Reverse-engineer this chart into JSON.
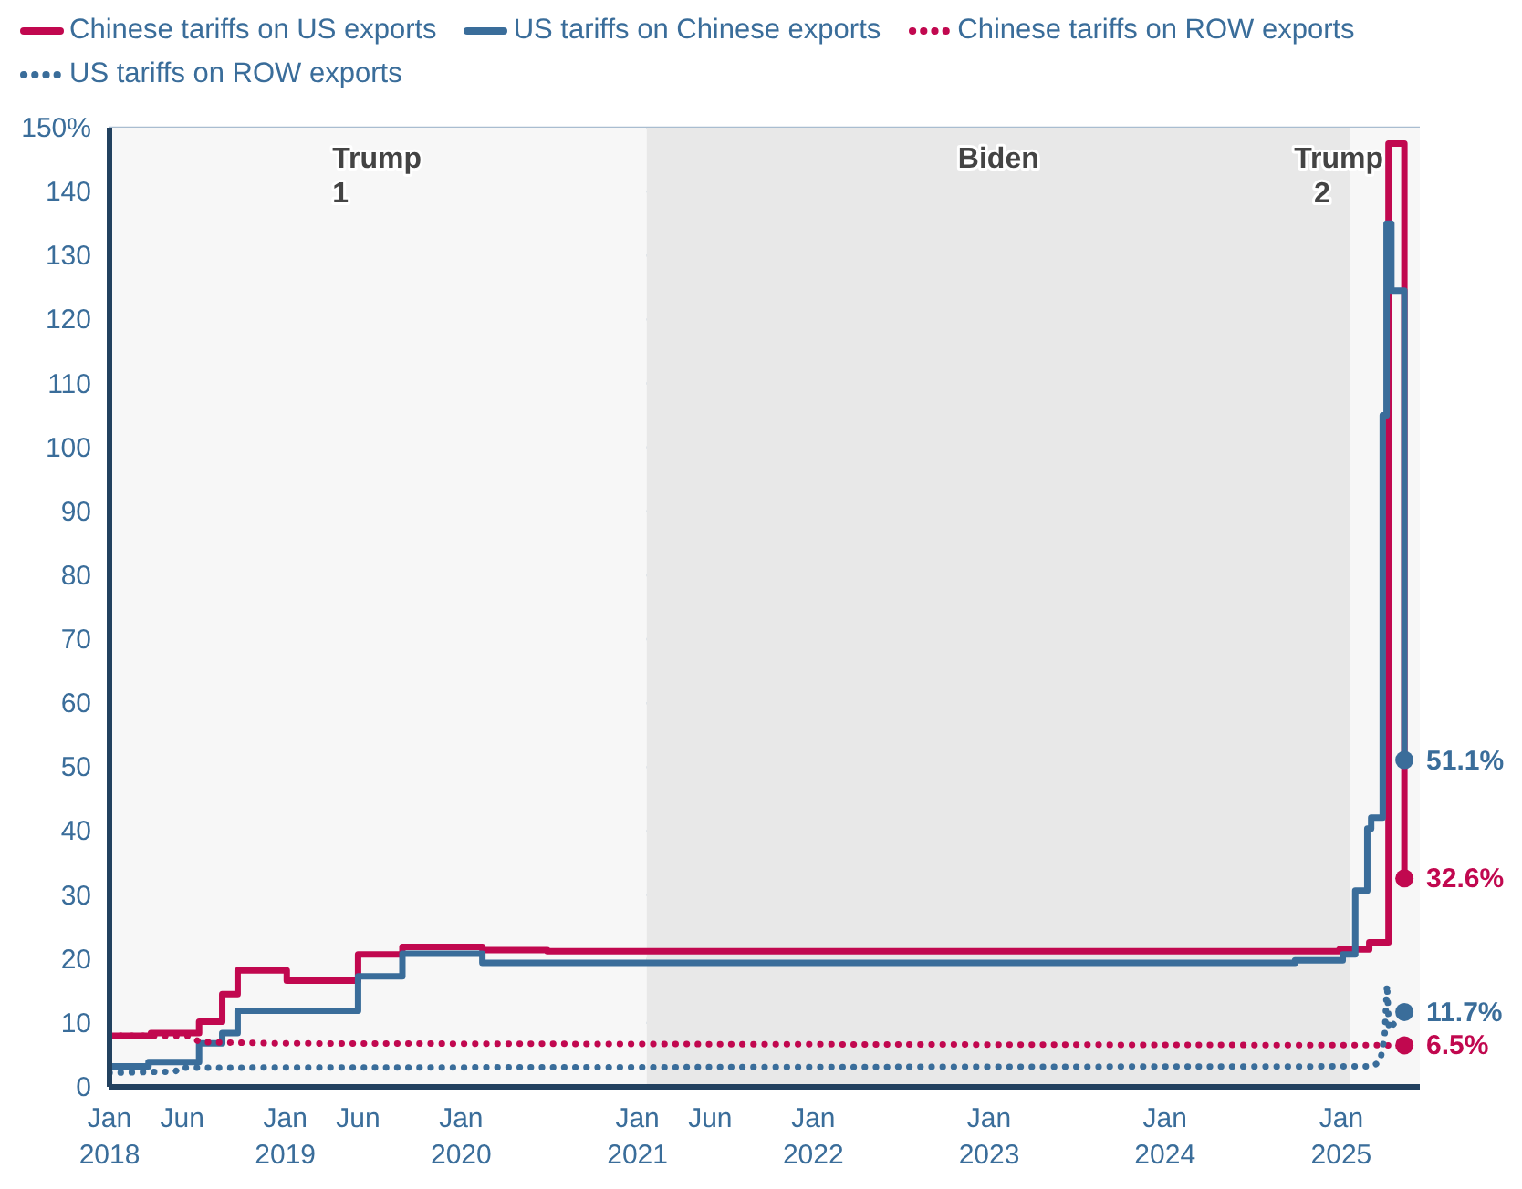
{
  "chart_data": {
    "type": "step",
    "xlim": [
      "2018-01-01",
      "2025-06-13"
    ],
    "ylim": [
      0,
      150
    ],
    "xticks": [
      {
        "value": "2018-01",
        "label": "Jan 2018"
      },
      {
        "value": "2018-06",
        "label": "Jun"
      },
      {
        "value": "2019-01",
        "label": "Jan 2019"
      },
      {
        "value": "2019-06",
        "label": "Jun"
      },
      {
        "value": "2020-01",
        "label": "Jan 2020"
      },
      {
        "value": "2021-01",
        "label": "Jan 2021"
      },
      {
        "value": "2021-06",
        "label": "Jun"
      },
      {
        "value": "2022-01",
        "label": "Jan 2022"
      },
      {
        "value": "2023-01",
        "label": "Jan 2023"
      },
      {
        "value": "2024-01",
        "label": "Jan 2024"
      },
      {
        "value": "2025-01",
        "label": "Jan 2025"
      }
    ],
    "yticks": [
      0,
      10,
      20,
      30,
      40,
      50,
      60,
      70,
      80,
      90,
      100,
      110,
      120,
      130,
      140,
      {
        "value": 150,
        "label": "150%"
      }
    ],
    "grid": "y",
    "legend": "top",
    "bands": [
      {
        "axis": "x",
        "from": "2018-01-01",
        "to": "2021-01-20",
        "label": "Trump 1",
        "color": "#f7f7f7"
      },
      {
        "axis": "x",
        "from": "2021-01-20",
        "to": "2025-01-20",
        "label": "Biden",
        "color": "#e8e8e8"
      },
      {
        "axis": "x",
        "from": "2025-01-20",
        "to": "2025-06-13",
        "label": "Trump 2",
        "color": "#f7f7f7"
      }
    ],
    "series": [
      {
        "name": "Chinese tariffs on US exports",
        "color": "#c1084f",
        "line_style": "solid",
        "x": [
          "2018-01-01",
          "2018-03-28",
          "2018-07-06",
          "2018-08-23",
          "2018-09-24",
          "2019-01-04",
          "2019-06-01",
          "2019-09-01",
          "2020-02-14",
          "2020-06-28",
          "2024-12-28",
          "2025-02-28",
          "2025-04-09",
          "2025-05-12"
        ],
        "values": [
          8.0,
          8.4,
          10.2,
          14.5,
          18.2,
          16.6,
          20.7,
          21.9,
          21.4,
          21.2,
          21.5,
          22.6,
          147.5,
          32.6
        ],
        "value_labels": [
          null,
          null,
          null,
          null,
          null,
          null,
          null,
          null,
          null,
          null,
          null,
          null,
          null,
          "32.6%"
        ]
      },
      {
        "name": "US tariffs on Chinese exports",
        "color": "#3a6d9a",
        "line_style": "solid",
        "x": [
          "2018-01-01",
          "2018-03-23",
          "2018-07-06",
          "2018-08-23",
          "2018-09-24",
          "2019-06-01",
          "2019-09-01",
          "2020-02-14",
          "2024-09-27",
          "2025-01-04",
          "2025-01-30",
          "2025-02-24",
          "2025-03-04",
          "2025-03-28",
          "2025-04-05",
          "2025-04-15",
          "2025-05-12"
        ],
        "values": [
          3.2,
          3.9,
          6.8,
          8.4,
          11.9,
          17.3,
          20.8,
          19.4,
          19.8,
          20.7,
          30.7,
          40.4,
          42.1,
          105,
          135,
          124.5,
          51.1
        ],
        "value_labels": [
          null,
          null,
          null,
          null,
          null,
          null,
          null,
          null,
          null,
          null,
          null,
          null,
          null,
          null,
          null,
          null,
          "51.1%"
        ]
      },
      {
        "name": "Chinese tariffs on ROW exports",
        "color": "#c1084f",
        "type": "line",
        "line_style": "dotted",
        "x": [
          "2018-01-01",
          "2018-06-15",
          "2018-07-08",
          "2019-01-01",
          "2021-01-01",
          "2025-05-12"
        ],
        "values": [
          8.0,
          8.0,
          7.0,
          6.8,
          6.7,
          6.5
        ],
        "value_labels": [
          null,
          null,
          null,
          null,
          null,
          "6.5%"
        ]
      },
      {
        "name": "US tariffs on ROW exports",
        "color": "#3a6d9a",
        "type": "line",
        "line_style": "dotted",
        "x": [
          "2018-01-01",
          "2018-05-18",
          "2018-05-25",
          "2025-03-08",
          "2025-03-23",
          "2025-04-01",
          "2025-04-06",
          "2025-04-10",
          "2025-05-12"
        ],
        "values": [
          2.2,
          2.4,
          3.0,
          3.2,
          4.1,
          8,
          16.0,
          9,
          11.7
        ],
        "value_labels": [
          null,
          null,
          null,
          null,
          null,
          null,
          null,
          null,
          "11.7%"
        ]
      }
    ]
  }
}
